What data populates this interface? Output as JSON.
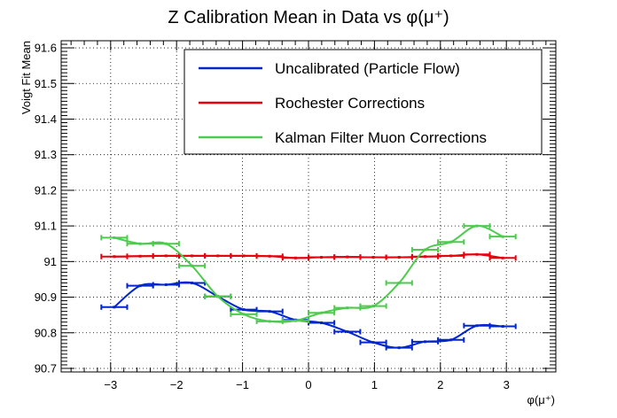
{
  "chart_data": {
    "type": "line",
    "title": "Z Calibration Mean in Data vs φ(μ⁺)",
    "xlabel": "φ(μ⁺)",
    "ylabel": "Voigt Fit Mean",
    "xlim": [
      -3.75,
      3.75
    ],
    "ylim": [
      90.69,
      91.62
    ],
    "grid": true,
    "legend_position": "top-right",
    "x_ticks": [
      -3,
      -2,
      -1,
      0,
      1,
      2,
      3
    ],
    "y_ticks": [
      90.7,
      90.8,
      90.9,
      91.0,
      91.1,
      91.2,
      91.3,
      91.4,
      91.5,
      91.6
    ],
    "x_tick_labels": [
      "−3",
      "−2",
      "−1",
      "0",
      "1",
      "2",
      "3"
    ],
    "y_tick_labels": [
      "90.7",
      "90.8",
      "90.9",
      "91",
      "91.1",
      "91.2",
      "91.3",
      "91.4",
      "91.5",
      "91.6"
    ],
    "x_error_half_width": 0.196,
    "x": [
      -2.945,
      -2.553,
      -2.16,
      -1.767,
      -1.374,
      -0.982,
      -0.589,
      -0.196,
      0.196,
      0.589,
      0.982,
      1.374,
      1.767,
      2.16,
      2.553,
      2.945
    ],
    "series": [
      {
        "name": "Uncalibrated (Particle Flow)",
        "color": "#0026cc",
        "values": [
          90.872,
          90.932,
          90.935,
          90.94,
          90.902,
          90.865,
          90.86,
          90.836,
          90.828,
          90.803,
          90.773,
          90.758,
          90.775,
          90.78,
          90.82,
          90.818
        ]
      },
      {
        "name": "Rochester Corrections",
        "color": "#e8000b",
        "values": [
          91.014,
          91.015,
          91.016,
          91.016,
          91.016,
          91.016,
          91.015,
          91.01,
          91.012,
          91.013,
          91.012,
          91.012,
          91.014,
          91.016,
          91.02,
          91.01
        ]
      },
      {
        "name": "Kalman Filter Muon Corrections",
        "color": "#4ecb4e",
        "values": [
          91.067,
          91.05,
          91.05,
          90.988,
          90.902,
          90.852,
          90.832,
          90.834,
          90.856,
          90.87,
          90.875,
          90.94,
          91.033,
          91.055,
          91.1,
          91.07
        ]
      }
    ]
  }
}
